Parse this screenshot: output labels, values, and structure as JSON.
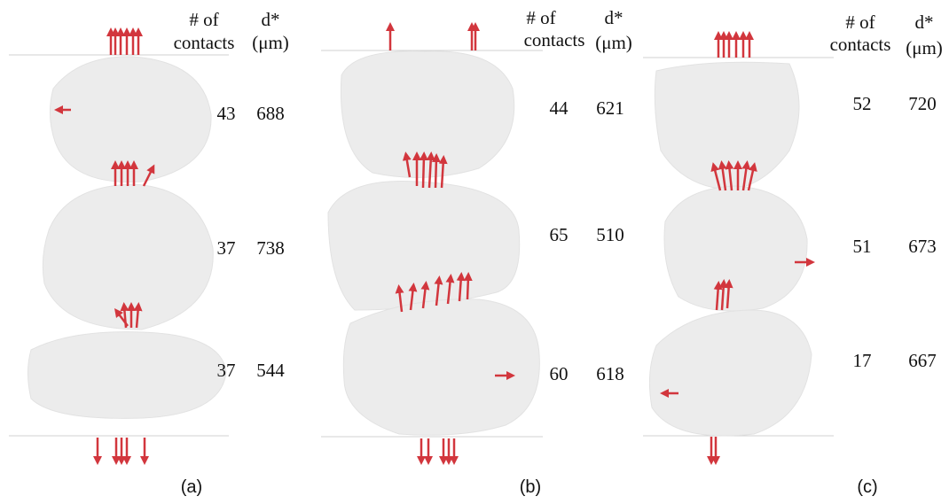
{
  "panels": [
    {
      "label": "(a)",
      "contacts_header": [
        "# of",
        "contacts"
      ],
      "diameter_header": [
        "d*",
        "(μm)"
      ],
      "rows": [
        {
          "contacts": 43,
          "diameter": 688
        },
        {
          "contacts": 37,
          "diameter": 738
        },
        {
          "contacts": 37,
          "diameter": 544
        }
      ]
    },
    {
      "label": "(b)",
      "contacts_header": [
        "# of",
        "contacts"
      ],
      "diameter_header": [
        "d*",
        "(μm)"
      ],
      "rows": [
        {
          "contacts": 44,
          "diameter": 621
        },
        {
          "contacts": 65,
          "diameter": 510
        },
        {
          "contacts": 60,
          "diameter": 618
        }
      ]
    },
    {
      "label": "(c)",
      "contacts_header": [
        "# of",
        "contacts"
      ],
      "diameter_header": [
        "d*",
        "(μm)"
      ],
      "rows": [
        {
          "contacts": 52,
          "diameter": 720
        },
        {
          "contacts": 51,
          "diameter": 673
        },
        {
          "contacts": 17,
          "diameter": 667
        }
      ]
    }
  ]
}
